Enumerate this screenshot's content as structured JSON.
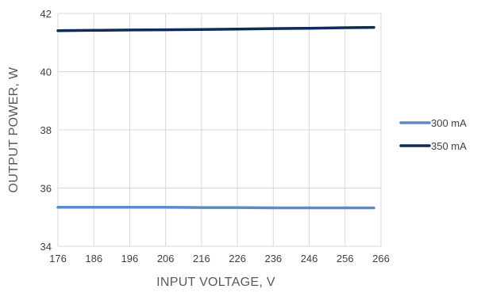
{
  "chart_data": {
    "type": "line",
    "xlabel": "INPUT VOLTAGE, V",
    "ylabel": "OUTPUT POWER, W",
    "xlim": [
      176,
      266
    ],
    "ylim": [
      34,
      42
    ],
    "x_ticks": [
      176,
      186,
      196,
      206,
      216,
      226,
      236,
      246,
      256,
      266
    ],
    "y_ticks": [
      34,
      36,
      38,
      40,
      42
    ],
    "grid": true,
    "legend": "right",
    "series": [
      {
        "name": "300 mA",
        "color": "#5b8bc7",
        "x": [
          176,
          186,
          196,
          206,
          216,
          226,
          236,
          246,
          256,
          264
        ],
        "y": [
          35.34,
          35.34,
          35.34,
          35.34,
          35.33,
          35.33,
          35.32,
          35.32,
          35.32,
          35.32
        ]
      },
      {
        "name": "350 mA",
        "color": "#0f2a5c",
        "x": [
          176,
          186,
          196,
          206,
          216,
          226,
          236,
          246,
          256,
          264
        ],
        "y": [
          41.41,
          41.42,
          41.43,
          41.44,
          41.45,
          41.46,
          41.48,
          41.49,
          41.51,
          41.52
        ]
      }
    ]
  }
}
